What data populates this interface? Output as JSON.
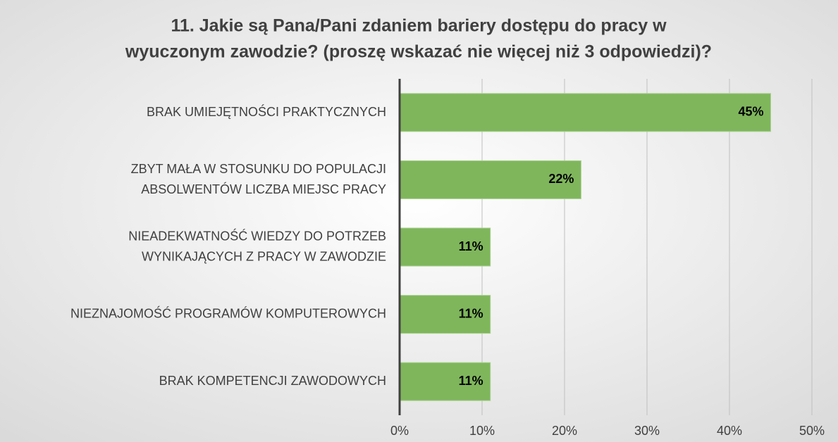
{
  "chart_data": {
    "type": "bar",
    "orientation": "horizontal",
    "title": "11. Jakie są Pana/Pani zdaniem bariery dostępu do pracy w\nwyuczonym zawodzie? (proszę wskazać nie więcej niż 3 odpowiedzi)?",
    "categories": [
      "BRAK UMIEJĘTNOŚCI PRAKTYCZNYCH",
      "ZBYT MAŁA W STOSUNKU DO POPULACJI\nABSOLWENTÓW LICZBA  MIEJSC PRACY",
      "NIEADEKWATNOŚĆ WIEDZY DO POTRZEB\nWYNIKAJĄCYCH Z PRACY W ZAWODZIE",
      "NIEZNAJOMOŚĆ PROGRAMÓW KOMPUTEROWYCH",
      "BRAK KOMPETENCJI ZAWODOWYCH"
    ],
    "values": [
      45,
      22,
      11,
      11,
      11
    ],
    "value_labels": [
      "45%",
      "22%",
      "11%",
      "11%",
      "11%"
    ],
    "color": "#7fb65c",
    "xlim": [
      0,
      50
    ],
    "xticks": [
      {
        "value": 0,
        "label": "0%"
      },
      {
        "value": 10,
        "label": "10%"
      },
      {
        "value": 20,
        "label": "20%"
      },
      {
        "value": 30,
        "label": "30%"
      },
      {
        "value": 40,
        "label": "40%"
      },
      {
        "value": 50,
        "label": "50%"
      }
    ],
    "grid": true
  }
}
